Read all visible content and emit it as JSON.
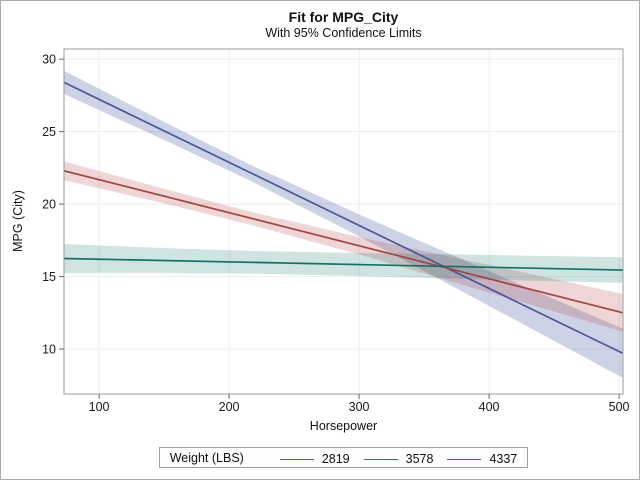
{
  "chart_data": {
    "type": "line",
    "title": "Fit for MPG_City",
    "subtitle": "With 95% Confidence Limits",
    "xlabel": "Horsepower",
    "ylabel": "MPG (City)",
    "legend_title": "Weight (LBS)",
    "x_range": [
      73,
      503
    ],
    "y_range": [
      6.9,
      30.7
    ],
    "x_ticks": [
      100,
      200,
      300,
      400,
      500
    ],
    "y_ticks": [
      10,
      15,
      20,
      25,
      30
    ],
    "grid": true,
    "legend_position": "bottom-center",
    "frame_color": "#9b9b9b",
    "grid_color": "#eeeeee",
    "series": [
      {
        "name": "2819",
        "color": "#4a579e",
        "band_color": "rgba(74,87,158,0.27)",
        "line": [
          [
            73,
            28.4
          ],
          [
            503,
            9.7
          ]
        ],
        "band": [
          [
            73,
            27.6,
            29.2
          ],
          [
            150,
            24.43,
            25.67
          ],
          [
            215,
            21.67,
            22.77
          ],
          [
            300,
            17.78,
            19.28
          ],
          [
            400,
            12.98,
            15.38
          ],
          [
            503,
            8.0,
            11.4
          ]
        ]
      },
      {
        "name": "3578",
        "color": "#a8423c",
        "band_color": "rgba(168,62,56,0.21)",
        "line": [
          [
            73,
            22.3
          ],
          [
            503,
            12.5
          ]
        ],
        "band": [
          [
            73,
            21.65,
            22.95
          ],
          [
            150,
            20.05,
            21.05
          ],
          [
            215,
            18.61,
            19.51
          ],
          [
            300,
            16.53,
            17.73
          ],
          [
            400,
            13.9,
            15.8
          ],
          [
            503,
            11.2,
            13.8
          ]
        ]
      },
      {
        "name": "4337",
        "color": "#0e7268",
        "band_color": "rgba(14,114,104,0.20)",
        "line": [
          [
            73,
            16.25
          ],
          [
            503,
            15.45
          ]
        ],
        "band": [
          [
            73,
            15.25,
            17.25
          ],
          [
            150,
            15.26,
            16.96
          ],
          [
            215,
            15.21,
            16.77
          ],
          [
            300,
            15.03,
            16.63
          ],
          [
            400,
            14.79,
            16.49
          ],
          [
            503,
            14.57,
            16.33
          ]
        ]
      }
    ]
  }
}
